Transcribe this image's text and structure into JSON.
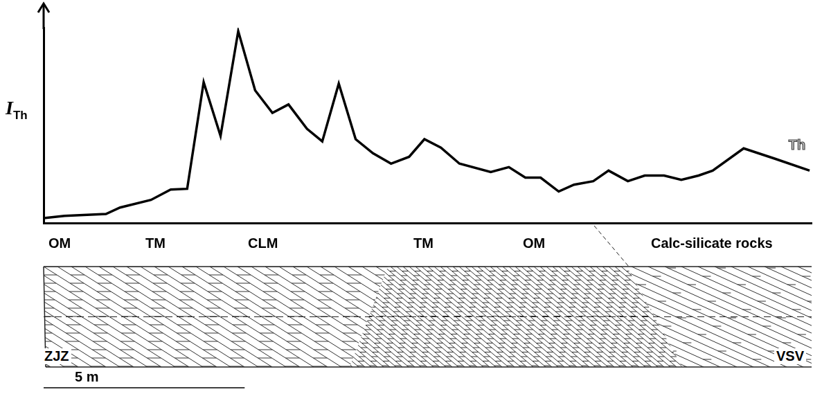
{
  "chart_data": {
    "type": "line",
    "ylabel": "I",
    "ylabel_subscript": "Th",
    "x": [
      0,
      0.52,
      1.55,
      1.9,
      2.67,
      3.16,
      3.57,
      3.98,
      4.4,
      4.84,
      5.26,
      5.69,
      6.09,
      6.55,
      6.93,
      7.34,
      7.76,
      8.19,
      8.64,
      9.09,
      9.47,
      9.88,
      10.34,
      11.12,
      11.57,
      11.98,
      12.36,
      12.81,
      13.19,
      13.67,
      14.05,
      14.53,
      14.95,
      15.43,
      15.86,
      16.29,
      16.64,
      17.41,
      18.19,
      19.05
    ],
    "series": [
      {
        "name": "Th",
        "color": "#000000",
        "values": [
          2.5,
          3.6,
          4.6,
          7.9,
          11.8,
          17.1,
          17.5,
          72.1,
          44.6,
          98.2,
          67.9,
          56.4,
          60.7,
          48.2,
          41.8,
          71.4,
          42.9,
          35.7,
          30.4,
          33.9,
          42.9,
          38.6,
          30.4,
          26.1,
          28.6,
          23.2,
          23.2,
          16.1,
          19.6,
          21.4,
          26.8,
          21.4,
          24.3,
          24.3,
          22.1,
          24.3,
          26.8,
          38.2,
          32.9,
          26.8
        ]
      }
    ],
    "xlim": [
      0,
      19.1
    ],
    "ylim": [
      0,
      100
    ],
    "grid": false,
    "tick_labels": false
  },
  "section": {
    "units": [
      "OM",
      "TM",
      "CLM",
      "TM",
      "OM",
      "Calc-silicate rocks"
    ],
    "ends": [
      "ZJZ",
      "VSV"
    ],
    "scale_bar": {
      "length": 5,
      "label": "5 m"
    }
  }
}
